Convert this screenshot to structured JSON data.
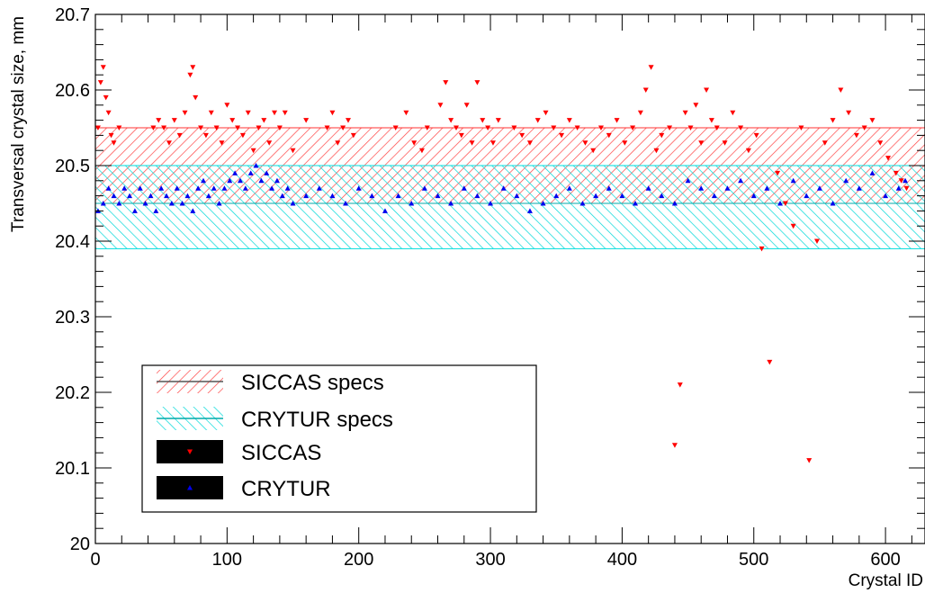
{
  "chart_data": {
    "type": "scatter",
    "title": "",
    "xlabel": "Crystal ID",
    "ylabel": "Transversal crystal size, mm",
    "xlim": [
      0,
      630
    ],
    "ylim": [
      20.0,
      20.7
    ],
    "x_ticks": [
      0,
      100,
      200,
      300,
      400,
      500,
      600
    ],
    "y_ticks": [
      20,
      20.1,
      20.2,
      20.3,
      20.4,
      20.5,
      20.6,
      20.7
    ],
    "x_tick_labels": [
      "0",
      "100",
      "200",
      "300",
      "400",
      "500",
      "600"
    ],
    "y_tick_labels": [
      "20",
      "20.1",
      "20.2",
      "20.3",
      "20.4",
      "20.5",
      "20.6",
      "20.7"
    ],
    "grid": false,
    "legend_position": "lower-left",
    "bands": [
      {
        "name": "SICCAS specs",
        "ymin": 20.45,
        "ymax": 20.55,
        "center": 20.5,
        "color": "#ff3333"
      },
      {
        "name": "CRYTUR specs",
        "ymin": 20.39,
        "ymax": 20.5,
        "center": 20.45,
        "color": "#00dddd"
      }
    ],
    "series": [
      {
        "name": "SICCAS",
        "marker": "triangle-down",
        "color": "#ff0000",
        "x": [
          2,
          4,
          6,
          8,
          10,
          12,
          14,
          18,
          44,
          48,
          52,
          56,
          60,
          64,
          68,
          72,
          74,
          76,
          80,
          84,
          88,
          92,
          96,
          100,
          104,
          108,
          112,
          116,
          120,
          124,
          128,
          132,
          136,
          140,
          144,
          150,
          160,
          176,
          180,
          184,
          188,
          192,
          196,
          228,
          236,
          242,
          248,
          252,
          262,
          266,
          270,
          274,
          278,
          282,
          286,
          290,
          294,
          298,
          302,
          306,
          318,
          324,
          330,
          336,
          342,
          348,
          354,
          360,
          366,
          372,
          378,
          384,
          390,
          396,
          402,
          408,
          414,
          418,
          422,
          426,
          430,
          436,
          440,
          444,
          448,
          452,
          456,
          460,
          464,
          468,
          472,
          478,
          484,
          490,
          496,
          502,
          506,
          512,
          518,
          524,
          530,
          536,
          542,
          548,
          554,
          560,
          566,
          572,
          578,
          584,
          590,
          596,
          602,
          608,
          612,
          616
        ],
        "y": [
          20.55,
          20.61,
          20.63,
          20.59,
          20.57,
          20.54,
          20.53,
          20.55,
          20.55,
          20.56,
          20.55,
          20.53,
          20.56,
          20.54,
          20.57,
          20.62,
          20.63,
          20.59,
          20.55,
          20.54,
          20.57,
          20.55,
          20.53,
          20.58,
          20.56,
          20.55,
          20.54,
          20.57,
          20.52,
          20.55,
          20.56,
          20.53,
          20.57,
          20.55,
          20.57,
          20.52,
          20.56,
          20.55,
          20.57,
          20.53,
          20.55,
          20.56,
          20.54,
          20.55,
          20.57,
          20.53,
          20.52,
          20.55,
          20.58,
          20.61,
          20.56,
          20.55,
          20.54,
          20.58,
          20.53,
          20.61,
          20.56,
          20.55,
          20.53,
          20.56,
          20.55,
          20.54,
          20.53,
          20.56,
          20.57,
          20.55,
          20.54,
          20.56,
          20.55,
          20.53,
          20.52,
          20.55,
          20.54,
          20.56,
          20.53,
          20.55,
          20.57,
          20.6,
          20.63,
          20.52,
          20.54,
          20.55,
          20.13,
          20.21,
          20.57,
          20.55,
          20.58,
          20.53,
          20.6,
          20.56,
          20.55,
          20.53,
          20.57,
          20.55,
          20.52,
          20.54,
          20.39,
          20.24,
          20.49,
          20.45,
          20.42,
          20.55,
          20.11,
          20.4,
          20.53,
          20.56,
          20.6,
          20.57,
          20.54,
          20.55,
          20.56,
          20.53,
          20.51,
          20.49,
          20.48,
          20.47
        ]
      },
      {
        "name": "CRYTUR",
        "marker": "triangle-up",
        "color": "#0000ee",
        "x": [
          2,
          6,
          10,
          14,
          18,
          22,
          26,
          30,
          34,
          38,
          42,
          46,
          50,
          54,
          58,
          62,
          66,
          70,
          74,
          78,
          82,
          86,
          90,
          94,
          98,
          102,
          106,
          110,
          114,
          118,
          122,
          126,
          130,
          134,
          138,
          142,
          146,
          150,
          160,
          170,
          180,
          190,
          200,
          210,
          220,
          230,
          240,
          250,
          260,
          270,
          280,
          290,
          300,
          310,
          320,
          330,
          340,
          350,
          360,
          370,
          380,
          390,
          400,
          410,
          420,
          430,
          440,
          450,
          460,
          470,
          480,
          490,
          500,
          510,
          520,
          530,
          540,
          550,
          560,
          570,
          580,
          590,
          600,
          610,
          615
        ],
        "y": [
          20.44,
          20.45,
          20.47,
          20.46,
          20.45,
          20.47,
          20.46,
          20.44,
          20.47,
          20.45,
          20.46,
          20.44,
          20.47,
          20.46,
          20.45,
          20.47,
          20.45,
          20.46,
          20.44,
          20.47,
          20.48,
          20.46,
          20.47,
          20.45,
          20.47,
          20.48,
          20.49,
          20.48,
          20.47,
          20.49,
          20.5,
          20.48,
          20.49,
          20.47,
          20.48,
          20.46,
          20.47,
          20.45,
          20.46,
          20.47,
          20.46,
          20.45,
          20.47,
          20.46,
          20.44,
          20.46,
          20.45,
          20.47,
          20.46,
          20.45,
          20.47,
          20.46,
          20.45,
          20.47,
          20.46,
          20.44,
          20.45,
          20.46,
          20.47,
          20.45,
          20.46,
          20.47,
          20.46,
          20.45,
          20.47,
          20.46,
          20.45,
          20.48,
          20.47,
          20.46,
          20.47,
          20.48,
          20.46,
          20.47,
          20.45,
          20.48,
          20.46,
          20.47,
          20.45,
          20.48,
          20.47,
          20.49,
          20.46,
          20.47,
          20.48
        ]
      }
    ],
    "legend": [
      {
        "label": "SICCAS specs",
        "kind": "band",
        "color": "#ff3333"
      },
      {
        "label": "CRYTUR specs",
        "kind": "band",
        "color": "#00dddd"
      },
      {
        "label": "SICCAS",
        "kind": "marker",
        "color": "#ff0000"
      },
      {
        "label": "CRYTUR",
        "kind": "marker",
        "color": "#0000ee"
      }
    ]
  }
}
